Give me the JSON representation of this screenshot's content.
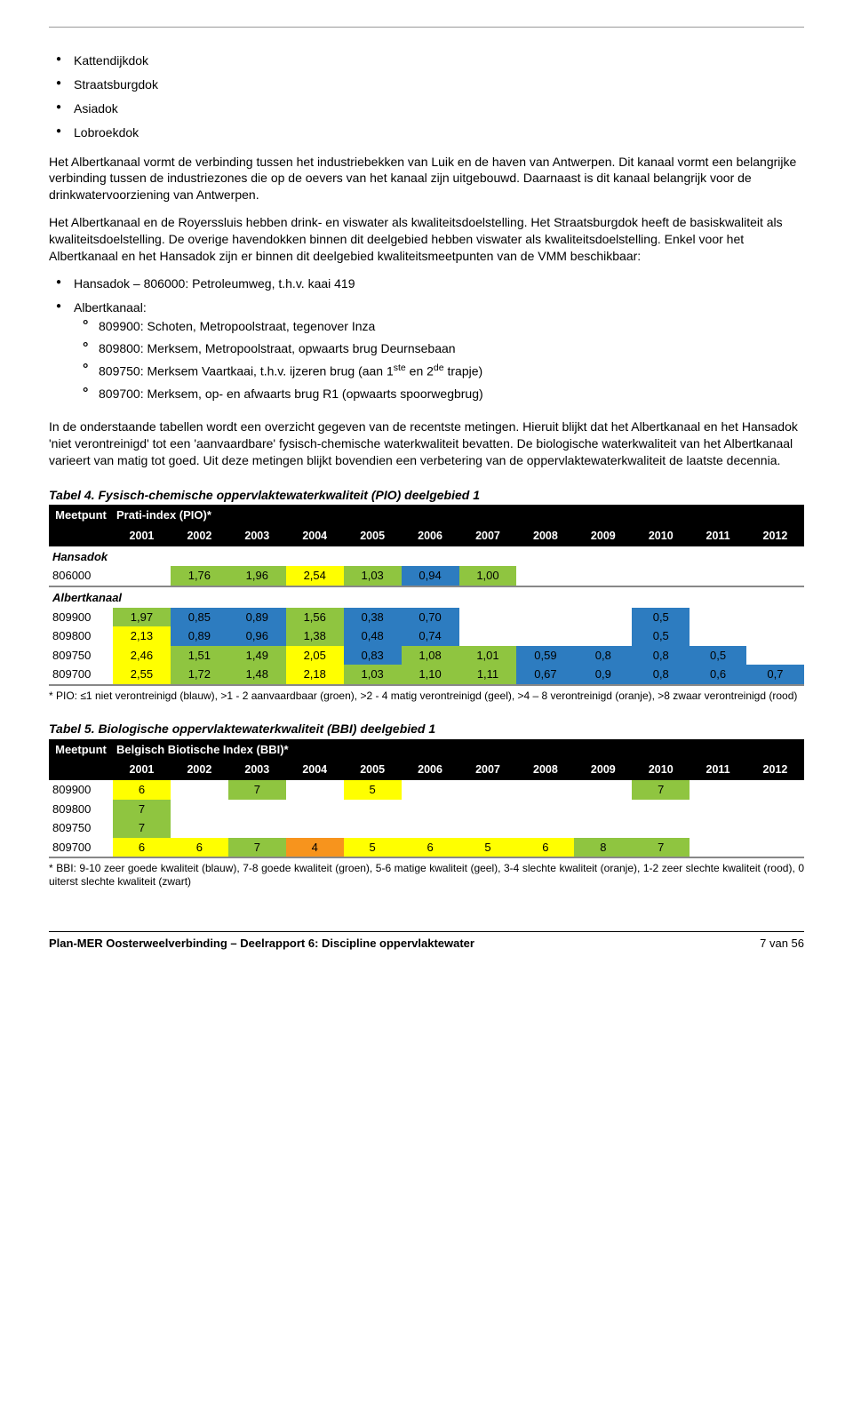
{
  "colors": {
    "blue": "#2d7cc0",
    "green": "#8fc540",
    "yellow": "#ffff00",
    "orange": "#f7941d",
    "red": "#e03030",
    "black": "#000000",
    "white": "#ffffff",
    "rule": "#888888"
  },
  "top_bullets": [
    "Kattendijkdok",
    "Straatsburgdok",
    "Asiadok",
    "Lobroekdok"
  ],
  "para1": "Het Albertkanaal vormt de verbinding tussen het industriebekken van Luik en de haven van Antwerpen. Dit kanaal vormt een belangrijke verbinding tussen de industriezones die op de oevers van het kanaal zijn uitgebouwd. Daarnaast is dit kanaal belangrijk voor de drinkwatervoorziening van Antwerpen.",
  "para2": "Het Albertkanaal en de Royerssluis hebben drink- en viswater als kwaliteitsdoelstelling. Het Straatsburgdok heeft de basiskwaliteit als kwaliteitsdoelstelling. De overige havendokken binnen dit deelgebied hebben viswater als kwaliteitsdoelstelling. Enkel voor het Albertkanaal en het Hansadok zijn er binnen dit deelgebied kwaliteitsmeetpunten van de VMM beschikbaar:",
  "mid_bullets": [
    {
      "text": "Hansadok – 806000: Petroleumweg, t.h.v. kaai 419"
    },
    {
      "text": "Albertkanaal:",
      "sub": [
        "809900: Schoten, Metropoolstraat, tegenover Inza",
        "809800: Merksem, Metropoolstraat, opwaarts brug Deurnsebaan",
        "809750: Merksem Vaartkaai, t.h.v. ijzeren brug (aan 1<sup>ste</sup> en 2<sup>de</sup> trapje)",
        "809700: Merksem, op- en afwaarts brug R1 (opwaarts spoorwegbrug)"
      ]
    }
  ],
  "para3": "In de onderstaande tabellen wordt een overzicht gegeven van de recentste metingen. Hieruit blijkt dat het Albertkanaal en het Hansadok 'niet verontreinigd' tot een 'aanvaardbare' fysisch-chemische waterkwaliteit bevatten. De biologische waterkwaliteit van het Albertkanaal varieert van matig tot goed. Uit deze metingen blijkt bovendien een verbetering van de oppervlaktewaterkwaliteit de laatste decennia.",
  "tabel4": {
    "title": "Tabel 4. Fysisch-chemische oppervlaktewaterkwaliteit (PIO) deelgebied 1",
    "header_left": "Meetpunt",
    "header_right": "Prati-index (PIO)*",
    "years": [
      "2001",
      "2002",
      "2003",
      "2004",
      "2005",
      "2006",
      "2007",
      "2008",
      "2009",
      "2010",
      "2011",
      "2012"
    ],
    "sections": [
      {
        "label": "Hansadok",
        "rows": [
          {
            "id": "806000",
            "cells": [
              null,
              {
                "v": "1,76",
                "c": "green"
              },
              {
                "v": "1,96",
                "c": "green"
              },
              {
                "v": "2,54",
                "c": "yellow"
              },
              {
                "v": "1,03",
                "c": "green"
              },
              {
                "v": "0,94",
                "c": "blue"
              },
              {
                "v": "1,00",
                "c": "green"
              },
              null,
              null,
              null,
              null,
              null
            ]
          }
        ]
      },
      {
        "label": "Albertkanaal",
        "rows": [
          {
            "id": "809900",
            "cells": [
              {
                "v": "1,97",
                "c": "green"
              },
              {
                "v": "0,85",
                "c": "blue"
              },
              {
                "v": "0,89",
                "c": "blue"
              },
              {
                "v": "1,56",
                "c": "green"
              },
              {
                "v": "0,38",
                "c": "blue"
              },
              {
                "v": "0,70",
                "c": "blue"
              },
              null,
              null,
              null,
              {
                "v": "0,5",
                "c": "blue"
              },
              null,
              null
            ]
          },
          {
            "id": "809800",
            "cells": [
              {
                "v": "2,13",
                "c": "yellow"
              },
              {
                "v": "0,89",
                "c": "blue"
              },
              {
                "v": "0,96",
                "c": "blue"
              },
              {
                "v": "1,38",
                "c": "green"
              },
              {
                "v": "0,48",
                "c": "blue"
              },
              {
                "v": "0,74",
                "c": "blue"
              },
              null,
              null,
              null,
              {
                "v": "0,5",
                "c": "blue"
              },
              null,
              null
            ]
          },
          {
            "id": "809750",
            "cells": [
              {
                "v": "2,46",
                "c": "yellow"
              },
              {
                "v": "1,51",
                "c": "green"
              },
              {
                "v": "1,49",
                "c": "green"
              },
              {
                "v": "2,05",
                "c": "yellow"
              },
              {
                "v": "0,83",
                "c": "blue"
              },
              {
                "v": "1,08",
                "c": "green"
              },
              {
                "v": "1,01",
                "c": "green"
              },
              {
                "v": "0,59",
                "c": "blue"
              },
              {
                "v": "0,8",
                "c": "blue"
              },
              {
                "v": "0,8",
                "c": "blue"
              },
              {
                "v": "0,5",
                "c": "blue"
              },
              null
            ]
          },
          {
            "id": "809700",
            "cells": [
              {
                "v": "2,55",
                "c": "yellow"
              },
              {
                "v": "1,72",
                "c": "green"
              },
              {
                "v": "1,48",
                "c": "green"
              },
              {
                "v": "2,18",
                "c": "yellow"
              },
              {
                "v": "1,03",
                "c": "green"
              },
              {
                "v": "1,10",
                "c": "green"
              },
              {
                "v": "1,11",
                "c": "green"
              },
              {
                "v": "0,67",
                "c": "blue"
              },
              {
                "v": "0,9",
                "c": "blue"
              },
              {
                "v": "0,8",
                "c": "blue"
              },
              {
                "v": "0,6",
                "c": "blue"
              },
              {
                "v": "0,7",
                "c": "blue"
              }
            ]
          }
        ]
      }
    ],
    "footnote": "* PIO: ≤1 niet verontreinigd (blauw), >1 - 2 aanvaardbaar (groen), >2 - 4 matig verontreinigd (geel), >4 – 8 verontreinigd (oranje), >8 zwaar verontreinigd (rood)"
  },
  "tabel5": {
    "title": "Tabel 5. Biologische oppervlaktewaterkwaliteit (BBI) deelgebied 1",
    "header_left": "Meetpunt",
    "header_right": "Belgisch Biotische Index (BBI)*",
    "years": [
      "2001",
      "2002",
      "2003",
      "2004",
      "2005",
      "2006",
      "2007",
      "2008",
      "2009",
      "2010",
      "2011",
      "2012"
    ],
    "rows": [
      {
        "id": "809900",
        "cells": [
          {
            "v": "6",
            "c": "yellow"
          },
          null,
          {
            "v": "7",
            "c": "green"
          },
          null,
          {
            "v": "5",
            "c": "yellow"
          },
          null,
          null,
          null,
          null,
          {
            "v": "7",
            "c": "green"
          },
          null,
          null
        ]
      },
      {
        "id": "809800",
        "cells": [
          {
            "v": "7",
            "c": "green"
          },
          null,
          null,
          null,
          null,
          null,
          null,
          null,
          null,
          null,
          null,
          null
        ]
      },
      {
        "id": "809750",
        "cells": [
          {
            "v": "7",
            "c": "green"
          },
          null,
          null,
          null,
          null,
          null,
          null,
          null,
          null,
          null,
          null,
          null
        ]
      },
      {
        "id": "809700",
        "cells": [
          {
            "v": "6",
            "c": "yellow"
          },
          {
            "v": "6",
            "c": "yellow"
          },
          {
            "v": "7",
            "c": "green"
          },
          {
            "v": "4",
            "c": "orange"
          },
          {
            "v": "5",
            "c": "yellow"
          },
          {
            "v": "6",
            "c": "yellow"
          },
          {
            "v": "5",
            "c": "yellow"
          },
          {
            "v": "6",
            "c": "yellow"
          },
          {
            "v": "8",
            "c": "green"
          },
          {
            "v": "7",
            "c": "green"
          },
          null,
          null
        ]
      }
    ],
    "footnote": "* BBI: 9-10 zeer goede kwaliteit (blauw), 7-8 goede kwaliteit (groen), 5-6 matige kwaliteit (geel), 3-4 slechte kwaliteit (oranje), 1-2 zeer slechte kwaliteit (rood), 0 uiterst slechte kwaliteit (zwart)"
  },
  "footer": {
    "left": "Plan-MER Oosterweelverbinding – Deelrapport 6: Discipline oppervlaktewater",
    "right": "7 van 56"
  }
}
